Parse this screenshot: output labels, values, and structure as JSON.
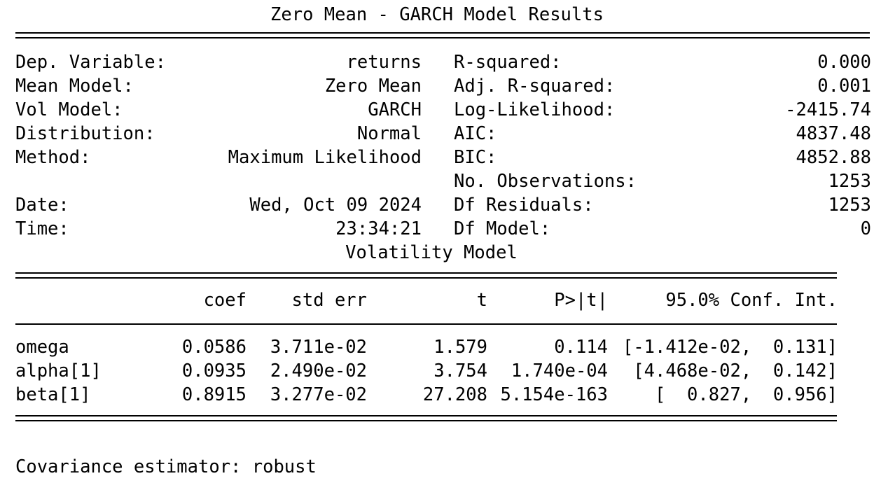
{
  "title": "Zero Mean - GARCH Model Results",
  "summary": {
    "left": [
      {
        "label": "Dep. Variable:",
        "value": "returns"
      },
      {
        "label": "Mean Model:",
        "value": "Zero Mean"
      },
      {
        "label": "Vol Model:",
        "value": "GARCH"
      },
      {
        "label": "Distribution:",
        "value": "Normal"
      },
      {
        "label": "Method:",
        "value": "Maximum Likelihood"
      },
      {
        "label": "",
        "value": ""
      },
      {
        "label": "Date:",
        "value": "Wed, Oct 09 2024"
      },
      {
        "label": "Time:",
        "value": "23:34:21"
      }
    ],
    "right": [
      {
        "label": "R-squared:",
        "value": "0.000"
      },
      {
        "label": "Adj. R-squared:",
        "value": "0.001"
      },
      {
        "label": "Log-Likelihood:",
        "value": "-2415.74"
      },
      {
        "label": "AIC:",
        "value": "4837.48"
      },
      {
        "label": "BIC:",
        "value": "4852.88"
      },
      {
        "label": "No. Observations:",
        "value": "1253"
      },
      {
        "label": "Df Residuals:",
        "value": "1253"
      },
      {
        "label": "Df Model:",
        "value": "0"
      }
    ]
  },
  "vol_title": "Volatility Model",
  "vol_table": {
    "headers": [
      "",
      "coef",
      "std err",
      "t",
      "P>|t|",
      "95.0% Conf. Int."
    ],
    "rows": [
      [
        "omega",
        "0.0586",
        "3.711e-02",
        "1.579",
        "0.114",
        "[-1.412e-02,  0.131]"
      ],
      [
        "alpha[1]",
        "0.0935",
        "2.490e-02",
        "3.754",
        "1.740e-04",
        "[4.468e-02,  0.142]"
      ],
      [
        "beta[1]",
        "0.8915",
        "3.277e-02",
        "27.208",
        "5.154e-163",
        "[  0.827,  0.956]"
      ]
    ]
  },
  "footer": "Covariance estimator: robust"
}
